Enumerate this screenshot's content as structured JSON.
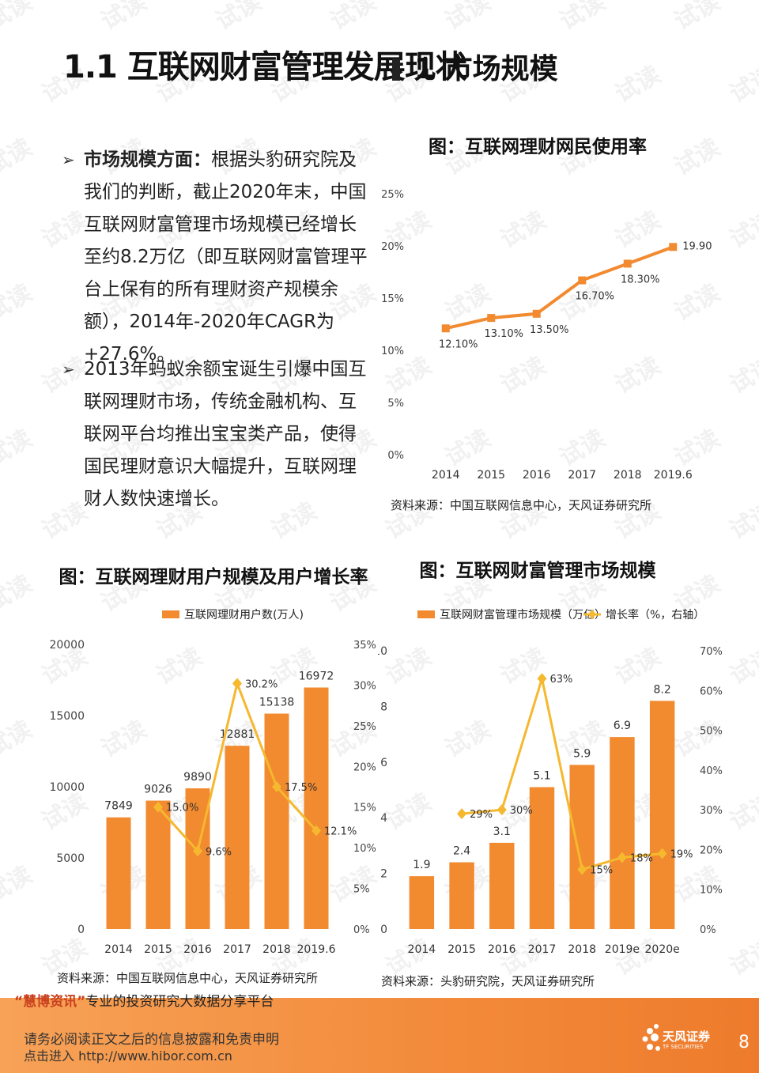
{
  "header": {
    "section_title": "1.1  互联网财富管理发展现状",
    "right_title": "1 市场规模"
  },
  "bullets": [
    {
      "bold": "市场规模方面：",
      "text": "根据头豹研究院及我们的判断，截止2020年末，中国互联网财富管理市场规模已经增长至约8.2万亿（即互联网财富管理平台上保有的所有理财资产规模余额），2014年-2020年CAGR为+27.6%。"
    },
    {
      "bold": "",
      "text": "2013年蚂蚁余额宝诞生引爆中国互联网理财市场，传统金融机构、互联网平台均推出宝宝类产品，使得国民理财意识大幅提升，互联网理财人数快速增长。"
    }
  ],
  "watermark_text": "试读",
  "chart_data": [
    {
      "type": "line",
      "title": "图：互联网理财网民使用率",
      "categories": [
        "2014",
        "2015",
        "2016",
        "2017",
        "2018",
        "2019.6"
      ],
      "series": [
        {
          "name": "",
          "values": [
            12.1,
            13.1,
            13.5,
            16.7,
            18.3,
            19.9
          ]
        }
      ],
      "data_labels": [
        "12.10%",
        "13.10%",
        "13.50%",
        "16.70%",
        "18.30%",
        "19.90%"
      ],
      "y_ticks": [
        "0%",
        "5%",
        "10%",
        "15%",
        "20%",
        "25%"
      ],
      "ylim": [
        0,
        25
      ],
      "color": "#f28a30",
      "source": "资料来源：中国互联网信息中心，天风证券研究所"
    },
    {
      "type": "bar",
      "title": "图：互联网理财用户规模及用户增长率",
      "legend": [
        "互联网理财用户数(万人)"
      ],
      "categories": [
        "2014",
        "2015",
        "2016",
        "2017",
        "2018",
        "2019.6"
      ],
      "series": [
        {
          "name": "互联网理财用户数(万人)",
          "values": [
            7849,
            9026,
            9890,
            12881,
            15138,
            16972
          ],
          "axis": "left"
        },
        {
          "name": "",
          "values": [
            null,
            15.0,
            9.6,
            30.2,
            17.5,
            12.1
          ],
          "axis": "right"
        }
      ],
      "bar_labels": [
        "7849",
        "9026",
        "9890",
        "12881",
        "15138",
        "16972"
      ],
      "line_labels": [
        "",
        "15.0%",
        "9.6%",
        "30.2%",
        "17.5%",
        "12.1%"
      ],
      "y_ticks": [
        "0",
        "5000",
        "10000",
        "15000",
        "20000"
      ],
      "y2_ticks": [
        "0%",
        "5%",
        "10%",
        "15%",
        "20%",
        "25%",
        "30%",
        "35%"
      ],
      "ylim": [
        0,
        20000
      ],
      "y2lim": [
        0,
        35
      ],
      "bar_color": "#f28a30",
      "line_color": "#f5b82e",
      "source": "资料来源：中国互联网信息中心，天风证券研究所"
    },
    {
      "type": "bar",
      "title": "图：互联网财富管理市场规模",
      "legend": [
        "互联网财富管理市场规模（万亿）",
        "增长率（%，右轴）"
      ],
      "categories": [
        "2014",
        "2015",
        "2016",
        "2017",
        "2018",
        "2019e",
        "2020e"
      ],
      "series": [
        {
          "name": "互联网财富管理市场规模（万亿）",
          "values": [
            1.9,
            2.4,
            3.1,
            5.1,
            5.9,
            6.9,
            8.2
          ],
          "axis": "left"
        },
        {
          "name": "增长率（%，右轴）",
          "values": [
            null,
            29,
            30,
            63,
            15,
            18,
            19
          ],
          "axis": "right"
        }
      ],
      "bar_labels": [
        "1.9",
        "2.4",
        "3.1",
        "5.1",
        "5.9",
        "6.9",
        "8.2"
      ],
      "line_labels": [
        "",
        "29%",
        "30%",
        "63%",
        "15%",
        "18%",
        "19%"
      ],
      "y_ticks": [
        "0",
        "2",
        "4",
        "6",
        "8",
        "10"
      ],
      "y2_ticks": [
        "0%",
        "10%",
        "20%",
        "30%",
        "40%",
        "50%",
        "60%",
        "70%"
      ],
      "ylim": [
        0,
        10
      ],
      "y2lim": [
        0,
        70
      ],
      "bar_color": "#f28a30",
      "line_color": "#f5b82e",
      "source": "资料来源：头豹研究院，天风证券研究所"
    }
  ],
  "footer": {
    "quote_name": "“慧博资讯”",
    "tagline": "专业的投资研究大数据分享平台",
    "disclaimer": "请务必阅读正文之后的信息披露和免责申明",
    "url": "点击进入 http://www.hibor.com.cn",
    "logo_name": "天风证券",
    "logo_sub": "TF SECURITIES",
    "page_number": "8"
  }
}
